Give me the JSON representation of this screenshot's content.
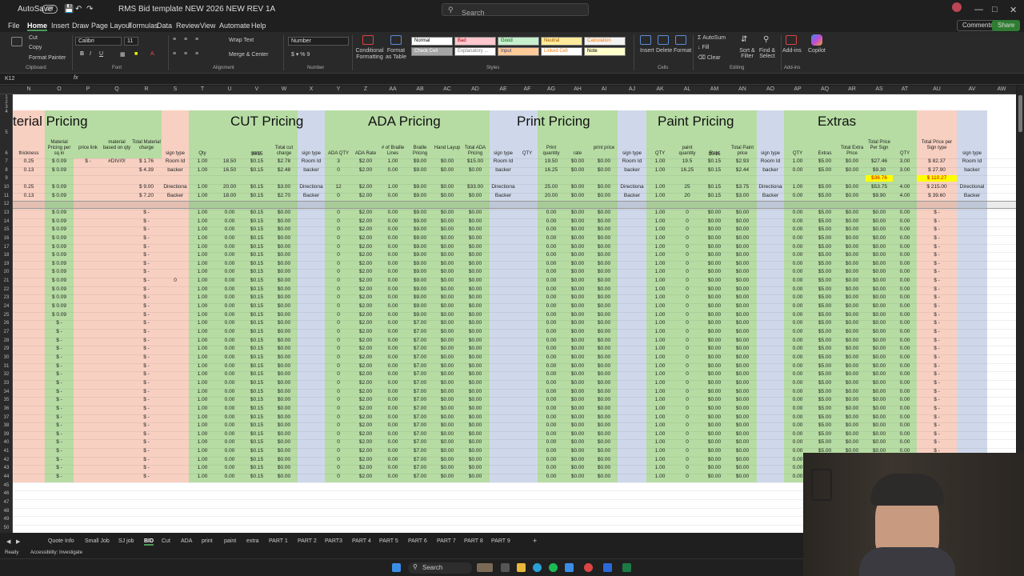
{
  "titlebar": {
    "autosave": "AutoSave",
    "toggle": "Off",
    "doc_title": "RMS Bid template NEW 2026  NEW REV 1A",
    "search_placeholder": "Search"
  },
  "menu": {
    "items": [
      "File",
      "Home",
      "Insert",
      "Draw",
      "Page Layout",
      "Formulas",
      "Data",
      "Review",
      "View",
      "Automate",
      "Help"
    ],
    "active": "Home",
    "comments": "Comments",
    "share": "Share"
  },
  "ribbon": {
    "clipboard": {
      "cut": "Cut",
      "copy": "Copy",
      "format_painter": "Format Painter",
      "group": "Clipboard"
    },
    "font": {
      "name": "Calibri",
      "size": "11",
      "group": "Font"
    },
    "alignment": {
      "wrap": "Wrap Text",
      "merge": "Merge & Center",
      "group": "Alignment"
    },
    "number": {
      "format": "Number",
      "group": "Number"
    },
    "styles": {
      "conditional": "Conditional Formatting",
      "format_table": "Format as Table",
      "group": "Styles",
      "cells": [
        {
          "label": "Normal",
          "bg": "#ffffff",
          "fg": "#000000"
        },
        {
          "label": "Bad",
          "bg": "#ffc7ce",
          "fg": "#9c0006"
        },
        {
          "label": "Good",
          "bg": "#c6efce",
          "fg": "#006100"
        },
        {
          "label": "Neutral",
          "bg": "#ffeb9c",
          "fg": "#9c5700"
        },
        {
          "label": "Calculation",
          "bg": "#f2f2f2",
          "fg": "#fa7d00"
        },
        {
          "label": "Check Cell",
          "bg": "#a5a5a5",
          "fg": "#ffffff"
        },
        {
          "label": "Explanatory ...",
          "bg": "#ffffff",
          "fg": "#7f7f7f"
        },
        {
          "label": "Input",
          "bg": "#ffcc99",
          "fg": "#3f3f76"
        },
        {
          "label": "Linked Cell",
          "bg": "#ffffff",
          "fg": "#fa7d00"
        },
        {
          "label": "Note",
          "bg": "#ffffcc",
          "fg": "#000000"
        }
      ]
    },
    "cells": {
      "insert": "Insert",
      "delete": "Delete",
      "format": "Format",
      "group": "Cells"
    },
    "editing": {
      "autosum": "AutoSum",
      "fill": "Fill",
      "clear": "Clear",
      "sort": "Sort & Filter",
      "find": "Find & Select",
      "group": "Editing"
    },
    "addins": {
      "label": "Add-ins",
      "group": "Add-ins"
    },
    "copilot": "Copilot"
  },
  "formula_bar": {
    "name_box": "K12",
    "fx": "fx",
    "content": ""
  },
  "columns": [
    "N",
    "O",
    "P",
    "Q",
    "R",
    "S",
    "T",
    "U",
    "V",
    "W",
    "X",
    "Y",
    "Z",
    "AA",
    "AB",
    "AC",
    "AD",
    "AE",
    "AF",
    "AG",
    "AH",
    "AI",
    "AJ",
    "AK",
    "AL",
    "AM",
    "AN",
    "AO",
    "AP",
    "AQ",
    "AR",
    "AS",
    "AT",
    "AU",
    "AV",
    "AW"
  ],
  "rows": [
    "1",
    "2",
    "3",
    "4",
    "5",
    "6",
    "7",
    "8",
    "9",
    "10",
    "11",
    "12",
    "13",
    "14",
    "15",
    "16",
    "17",
    "18",
    "19",
    "20",
    "21",
    "22",
    "23",
    "24",
    "25",
    "26",
    "27",
    "28",
    "29",
    "30",
    "31",
    "32",
    "33",
    "34",
    "35",
    "36",
    "37",
    "38",
    "39",
    "40",
    "41",
    "42",
    "43",
    "44",
    "45",
    "46",
    "47",
    "48",
    "49",
    "50"
  ],
  "sections": [
    {
      "title": "terial Pricing"
    },
    {
      "title": "CUT  Pricing"
    },
    {
      "title": "ADA Pricing"
    },
    {
      "title": "Print Pricing"
    },
    {
      "title": "Paint Pricing"
    },
    {
      "title": "Extras"
    }
  ],
  "headers": [
    "thickness",
    "Material Pricing per sq in",
    "price link",
    "material based on qty",
    "Total Material charge",
    "sign type",
    "Qty",
    "",
    "rate",
    "Total cut charge",
    "sign type",
    "ADA QTY",
    "ADA Rate",
    "# of Braille Lines",
    "Braille Pricing",
    "Hand Layup",
    "Total ADA Pricing",
    "sign type",
    "QTY",
    "Print quantity",
    "rate",
    "print price",
    "sign type",
    "QTY",
    "paint quantity",
    "Rate",
    "Total Paint price",
    "sign type",
    "QTY",
    "Extras",
    "Total Extra Price",
    "Total Price Per Sign",
    "QTY",
    "Total Price per Sign type",
    "sign type"
  ],
  "sub_headers": {
    "cut_rate": "$0.15",
    "paint_rate": "$0.15"
  },
  "data_rows": [
    {
      "row": "7",
      "cells": [
        "0.25",
        "$  0.09",
        "$  -",
        "#DIV/0!",
        "$   1.76",
        "Room Id",
        "1.00",
        "18.50",
        "$0.15",
        "$2.78",
        "Room Id",
        "3",
        "$2.00",
        "1.00",
        "$9.00",
        "$0.00",
        "$15.00",
        "Room Id",
        "",
        "19.50",
        "$0.00",
        "$0.00",
        "Room Id",
        "1.00",
        "19.5",
        "$0.15",
        "$2.93",
        "Room Id",
        "1.00",
        "$5.00",
        "$0.00",
        "$27.46",
        "3.00",
        "$   82.37",
        "Room Id"
      ]
    },
    {
      "row": "8",
      "cells": [
        "0.13",
        "$  0.09",
        "",
        "",
        "$   4.39",
        "backer",
        "1.00",
        "16.50",
        "$0.15",
        "$2.48",
        "backer",
        "0",
        "$2.00",
        "0.00",
        "$9.00",
        "$0.00",
        "$0.00",
        "backer",
        "",
        "16.25",
        "$0.00",
        "$0.00",
        "backer",
        "1.00",
        "16.25",
        "$0.15",
        "$2.44",
        "backer",
        "0.00",
        "$5.00",
        "$0.00",
        "$9.30",
        "3.00",
        "$   27.90",
        "backer"
      ]
    },
    {
      "row": "9",
      "cells": [
        "",
        "",
        "",
        "",
        "",
        "",
        "",
        "",
        "",
        "",
        "",
        "",
        "",
        "",
        "",
        "",
        "",
        "",
        "",
        "",
        "",
        "",
        "",
        "",
        "",
        "",
        "",
        "",
        "",
        "",
        "",
        "$36.76",
        "",
        "$  110.27",
        ""
      ]
    },
    {
      "row": "10",
      "cells": [
        "0.25",
        "$  0.09",
        "",
        "",
        "$   9.00",
        "Directiona",
        "1.00",
        "20.00",
        "$0.15",
        "$3.00",
        "Directiona",
        "12",
        "$2.00",
        "1.00",
        "$9.00",
        "$0.00",
        "$33.00",
        "Directiona",
        "",
        "25.00",
        "$0.00",
        "$0.00",
        "Directiona",
        "1.00",
        "25",
        "$0.15",
        "$3.75",
        "Directiona",
        "1.00",
        "$5.00",
        "$0.00",
        "$53.75",
        "4.00",
        "$  215.00",
        "Directional"
      ]
    },
    {
      "row": "11",
      "cells": [
        "0.13",
        "$  0.09",
        "",
        "",
        "$   7.20",
        "Backer",
        "1.00",
        "18.00",
        "$0.15",
        "$2.70",
        "Backer",
        "0",
        "$2.00",
        "0.00",
        "$9.00",
        "$0.00",
        "$0.00",
        "Backer",
        "",
        "20.00",
        "$0.00",
        "$0.00",
        "Backer",
        "1.00",
        "20",
        "$0.15",
        "$3.00",
        "Backer",
        "0.00",
        "$5.00",
        "$0.00",
        "$9.90",
        "4.00",
        "$   39.60",
        "Backer"
      ]
    }
  ],
  "empty_row_template_a": [
    "",
    "$  0.09",
    "",
    "",
    "$   -",
    "",
    "1.00",
    "0.00",
    "$0.15",
    "$0.00",
    "",
    "0",
    "$2.00",
    "0.00",
    "$9.00",
    "$0.00",
    "$0.00",
    "",
    "",
    "0.00",
    "$0.00",
    "$0.00",
    "",
    "1.00",
    "0",
    "$0.00",
    "$0.00",
    "",
    "0.00",
    "$5.00",
    "$0.00",
    "$0.00",
    "0.00",
    "$     -",
    ""
  ],
  "empty_row_template_b": [
    "",
    "$   -",
    "",
    "",
    "$   -",
    "",
    "1.00",
    "0.00",
    "$0.15",
    "$0.00",
    "",
    "0",
    "$2.00",
    "0.00",
    "$7.00",
    "$0.00",
    "$0.00",
    "",
    "",
    "0.00",
    "$0.00",
    "$0.00",
    "",
    "1.00",
    "0",
    "$0.00",
    "$0.00",
    "",
    "0.00",
    "$5.00",
    "$0.00",
    "$0.00",
    "0.00",
    "$     -",
    ""
  ],
  "row21_s": "0",
  "tabs": [
    "Quote Info",
    "Small Job",
    "SJ job",
    "BID",
    "Cut",
    "ADA",
    "print",
    "paint",
    "extra",
    "PART 1",
    "PART 2",
    "PART3",
    "PART 4",
    "PART 5",
    "PART 6",
    "PART 7",
    "PART 8",
    "PART 9"
  ],
  "active_tab": "BID",
  "status": {
    "ready": "Ready",
    "accessibility": "Accessibility: Investigate"
  },
  "taskbar": {
    "search": "Search"
  },
  "colors": {
    "green": "#b6dca3",
    "pink": "#f8d0c2",
    "blue": "#cfd8ea",
    "yellow": "#ffff00"
  }
}
